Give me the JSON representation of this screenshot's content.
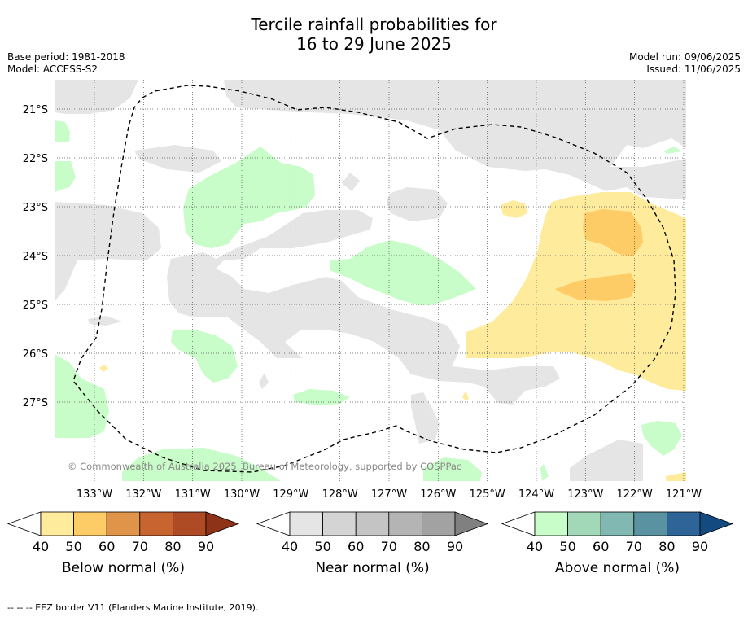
{
  "title": {
    "line1": "Tercile rainfall probabilities for",
    "line2": "16 to 29 June 2025"
  },
  "meta": {
    "base_period": "Base period: 1981-2018",
    "model": "Model: ACCESS-S2",
    "model_run": "Model run: 09/06/2025",
    "issued": "Issued: 11/06/2025"
  },
  "map": {
    "lat_labels": [
      "21°S",
      "22°S",
      "23°S",
      "24°S",
      "25°S",
      "26°S",
      "27°S"
    ],
    "lon_labels": [
      "133°W",
      "132°W",
      "131°W",
      "130°W",
      "129°W",
      "128°W",
      "127°W",
      "126°W",
      "125°W",
      "124°W",
      "123°W",
      "122°W",
      "121°W"
    ],
    "copyright": "© Commonwealth of Australia 2025, Bureau of Meteorology, supported by COSPPac",
    "colors": {
      "near": "#e5e5e5",
      "above": "#c8fcc8",
      "below40": "#ffeb9c",
      "below50": "#fdcc66"
    }
  },
  "colorbars": [
    {
      "label": "Below normal (%)",
      "ticks": [
        "40",
        "50",
        "60",
        "70",
        "80",
        "90"
      ],
      "colors": [
        "#ffeb9c",
        "#fdcc66",
        "#e0944a",
        "#c8642f",
        "#ae4a24",
        "#8e3218"
      ]
    },
    {
      "label": "Near normal (%)",
      "ticks": [
        "40",
        "50",
        "60",
        "70",
        "80",
        "90"
      ],
      "colors": [
        "#e5e5e5",
        "#d4d4d4",
        "#c4c4c4",
        "#b4b4b4",
        "#a2a2a2",
        "#808080"
      ]
    },
    {
      "label": "Above normal (%)",
      "ticks": [
        "40",
        "50",
        "60",
        "70",
        "80",
        "90"
      ],
      "colors": [
        "#c8fcc8",
        "#a2d8b8",
        "#82b8b2",
        "#5a92a2",
        "#2f6498",
        "#134a80"
      ]
    }
  ],
  "footnote": "--  --  -- EEZ border V11 (Flanders Marine Institute, 2019)."
}
